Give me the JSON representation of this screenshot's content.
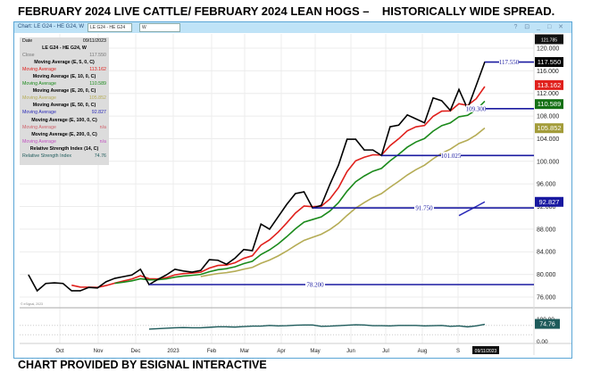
{
  "header": {
    "title": "FEBRUARY 2024 LIVE CATTLE/ FEBRUARY 2024 LEAN HOGS –    HISTORICALLY WIDE SPREAD."
  },
  "footer": {
    "caption": "CHART PROVIDED BY ESIGNAL INTERACTIVE"
  },
  "window": {
    "title": "Chart: LE G24 - HE G24, W",
    "symbol_input": "LE G24 - HE G24",
    "interval_input": "W",
    "controls": "? ⊡ _ □ ✕"
  },
  "legend": {
    "date_label": "Date",
    "date_value": "09/11/2023",
    "symbol": "LE G24 - HE G24, W",
    "close_label": "Close",
    "close_value": "117.550",
    "rows": [
      {
        "header": "Moving Average (E, 5, 0, C)",
        "label": "Moving Average",
        "value": "113.162",
        "color": "#e0201c"
      },
      {
        "header": "Moving Average (E, 10, 0, C)",
        "label": "Moving Average",
        "value": "110.589",
        "color": "#1b8a1b"
      },
      {
        "header": "Moving Average (E, 20, 0, C)",
        "label": "Moving Average",
        "value": "105.852",
        "color": "#b5ac55"
      },
      {
        "header": "Moving Average (E, 50, 0, C)",
        "label": "Moving Average",
        "value": "92.827",
        "color": "#2a2ab8"
      },
      {
        "header": "Moving Average (E, 100, 0, C)",
        "label": "Moving Average",
        "value": "n/a",
        "color": "#d0606a"
      },
      {
        "header": "Moving Average (E, 200, 0, C)",
        "label": "Moving Average",
        "value": "n/a",
        "color": "#c050c0"
      },
      {
        "header": "Relative Strength Index (14, C)",
        "label": "Relative Strength Index",
        "value": "74.76",
        "color": "#1d5a5a"
      }
    ]
  },
  "chart_data": {
    "type": "line",
    "xlabel": "",
    "ylabel": "",
    "x_tick_labels": [
      "Oct",
      "Nov",
      "Dec",
      "2023",
      "Feb",
      "Mar",
      "Apr",
      "May",
      "Jun",
      "Jul",
      "Aug",
      "S",
      "09/11/2023"
    ],
    "y_tick_labels": [
      "120.000",
      "116.000",
      "112.000",
      "108.000",
      "104.000",
      "100.000",
      "96.000",
      "92.000",
      "88.000",
      "84.000",
      "80.000",
      "76.000"
    ],
    "ylim": [
      74.5,
      121.5
    ],
    "grid": true,
    "close": [
      79.9,
      77.1,
      78.4,
      78.5,
      78.4,
      77.1,
      77.1,
      77.7,
      77.6,
      78.7,
      79.3,
      79.6,
      79.9,
      80.9,
      78.2,
      79.1,
      79.9,
      80.9,
      80.6,
      80.4,
      80.7,
      82.6,
      82.5,
      81.8,
      82.9,
      84.4,
      84.2,
      88.9,
      88.0,
      90.2,
      92.4,
      94.3,
      94.6,
      91.75,
      92.2,
      95.9,
      99.3,
      103.9,
      103.9,
      102.0,
      102.0,
      101.025,
      106.1,
      106.4,
      108.2,
      107.5,
      106.8,
      111.2,
      110.7,
      109.0,
      112.7,
      109.3,
      113.4,
      117.55
    ],
    "ema_periods": [
      5,
      10,
      20
    ],
    "ema_colors": [
      "#e0201c",
      "#1b8a1b",
      "#b5ac55"
    ],
    "ema50_tail": [
      90.4,
      91.2,
      92.0,
      92.827
    ],
    "levels": [
      {
        "value": 117.55,
        "label": "117.550"
      },
      {
        "value": 109.3,
        "label": "109.300"
      },
      {
        "value": 101.025,
        "label": "101.025"
      },
      {
        "value": 91.75,
        "label": "91.750"
      },
      {
        "value": 78.2,
        "label": "78.200"
      }
    ],
    "price_boxes": [
      {
        "label": "121.785",
        "bg": "#111111"
      },
      {
        "label": "117.550",
        "bg": "#000000"
      },
      {
        "label": "113.162",
        "bg": "#e0201c"
      },
      {
        "label": "110.589",
        "bg": "#157015"
      },
      {
        "label": "105.852",
        "bg": "#a39c3a"
      },
      {
        "label": "92.827",
        "bg": "#1818a0"
      }
    ],
    "rsi": {
      "ylim": [
        0,
        100
      ],
      "tick_labels": [
        "100.00",
        "0.00"
      ],
      "last_label": "74.76",
      "values": [
        54,
        56,
        58,
        60,
        61,
        60,
        60,
        62,
        64,
        64,
        63,
        65,
        67,
        67,
        70,
        68,
        69,
        71,
        72,
        72,
        66,
        67,
        69,
        71,
        73,
        72,
        69,
        69,
        68,
        70,
        70,
        70,
        68,
        69,
        70,
        66,
        68,
        64,
        68,
        74.76
      ]
    },
    "watermark": "© eSignal, 2023"
  }
}
